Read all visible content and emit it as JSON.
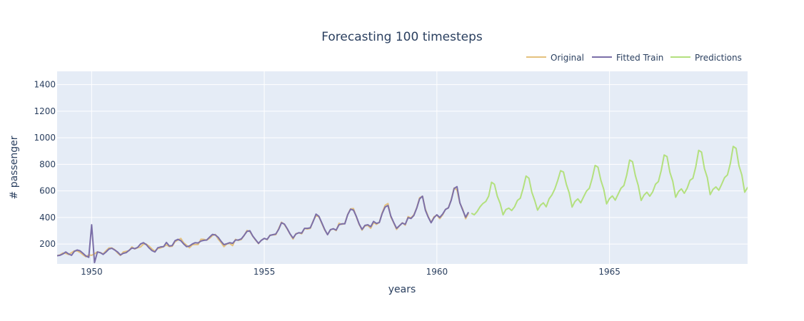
{
  "chart_data": {
    "type": "line",
    "title": "Forecasting 100 timesteps",
    "xlabel": "years",
    "ylabel": "# passenger",
    "xlim": [
      1949,
      1969
    ],
    "ylim": [
      50,
      1500
    ],
    "xticks": [
      1950,
      1955,
      1960,
      1965
    ],
    "yticks": [
      200,
      400,
      600,
      800,
      1000,
      1200,
      1400
    ],
    "legend_position": "top-right",
    "grid": true,
    "colors": {
      "plot_bg": "#e5ecf6",
      "grid": "#ffffff",
      "original": "#e4c17e",
      "fitted": "#7b6fa8",
      "predictions": "#b3e07e"
    },
    "series": [
      {
        "name": "Original",
        "start": 1949.0,
        "step": 0.08333,
        "values": [
          112,
          118,
          132,
          129,
          121,
          135,
          148,
          148,
          136,
          119,
          104,
          118,
          115,
          126,
          141,
          135,
          125,
          149,
          170,
          170,
          158,
          133,
          114,
          140,
          145,
          150,
          178,
          163,
          172,
          178,
          199,
          199,
          184,
          162,
          146,
          166,
          171,
          180,
          193,
          181,
          183,
          218,
          230,
          242,
          209,
          191,
          172,
          194,
          196,
          196,
          236,
          235,
          229,
          243,
          264,
          272,
          237,
          211,
          180,
          201,
          204,
          188,
          235,
          227,
          234,
          264,
          302,
          293,
          259,
          229,
          203,
          229,
          242,
          233,
          267,
          269,
          270,
          315,
          364,
          347,
          312,
          274,
          237,
          278,
          284,
          277,
          317,
          313,
          318,
          374,
          413,
          405,
          355,
          306,
          271,
          306,
          315,
          301,
          356,
          348,
          355,
          422,
          465,
          467,
          404,
          347,
          305,
          336,
          340,
          318,
          362,
          348,
          363,
          435,
          491,
          505,
          404,
          359,
          310,
          337,
          360,
          342,
          406,
          396,
          420,
          472,
          548,
          559,
          463,
          407,
          362,
          405,
          417,
          391,
          419,
          461,
          472,
          535,
          622,
          606,
          508,
          461,
          390,
          432
        ]
      },
      {
        "name": "Fitted Train",
        "start": 1949.0,
        "step": 0.08333,
        "values": [
          112,
          115,
          125,
          140,
          125,
          115,
          145,
          155,
          148,
          130,
          110,
          100,
          345,
          60,
          140,
          135,
          122,
          140,
          162,
          168,
          155,
          140,
          118,
          130,
          135,
          152,
          170,
          165,
          175,
          200,
          210,
          195,
          170,
          150,
          140,
          172,
          178,
          180,
          212,
          185,
          188,
          225,
          235,
          225,
          200,
          180,
          185,
          200,
          210,
          208,
          222,
          228,
          230,
          252,
          272,
          268,
          250,
          220,
          195,
          202,
          210,
          205,
          230,
          230,
          238,
          265,
          295,
          300,
          260,
          232,
          205,
          228,
          242,
          235,
          265,
          270,
          275,
          310,
          360,
          350,
          315,
          275,
          245,
          275,
          285,
          282,
          318,
          318,
          322,
          370,
          425,
          408,
          360,
          310,
          270,
          308,
          315,
          305,
          345,
          352,
          352,
          420,
          462,
          455,
          408,
          350,
          310,
          340,
          345,
          330,
          370,
          355,
          362,
          430,
          478,
          490,
          410,
          362,
          318,
          338,
          358,
          348,
          398,
          392,
          415,
          470,
          540,
          560,
          455,
          402,
          360,
          398,
          420,
          400,
          425,
          460,
          472,
          530,
          618,
          632,
          510,
          455,
          402,
          440
        ]
      },
      {
        "name": "Predictions",
        "start": 1961.0,
        "step": 0.08333,
        "values": [
          432,
          420,
          445,
          480,
          505,
          520,
          560,
          665,
          650,
          560,
          505,
          420,
          460,
          470,
          452,
          480,
          528,
          545,
          620,
          712,
          695,
          590,
          528,
          455,
          492,
          510,
          480,
          540,
          570,
          615,
          678,
          752,
          742,
          650,
          585,
          478,
          520,
          540,
          510,
          555,
          598,
          620,
          695,
          792,
          778,
          680,
          612,
          502,
          542,
          562,
          530,
          575,
          620,
          640,
          720,
          832,
          820,
          715,
          640,
          528,
          568,
          590,
          560,
          592,
          650,
          670,
          755,
          870,
          858,
          740,
          672,
          552,
          595,
          615,
          582,
          620,
          680,
          695,
          782,
          905,
          892,
          768,
          700,
          572,
          612,
          630,
          605,
          650,
          700,
          720,
          805,
          935,
          920,
          790,
          720,
          590,
          625,
          645,
          620,
          680
        ]
      }
    ]
  }
}
